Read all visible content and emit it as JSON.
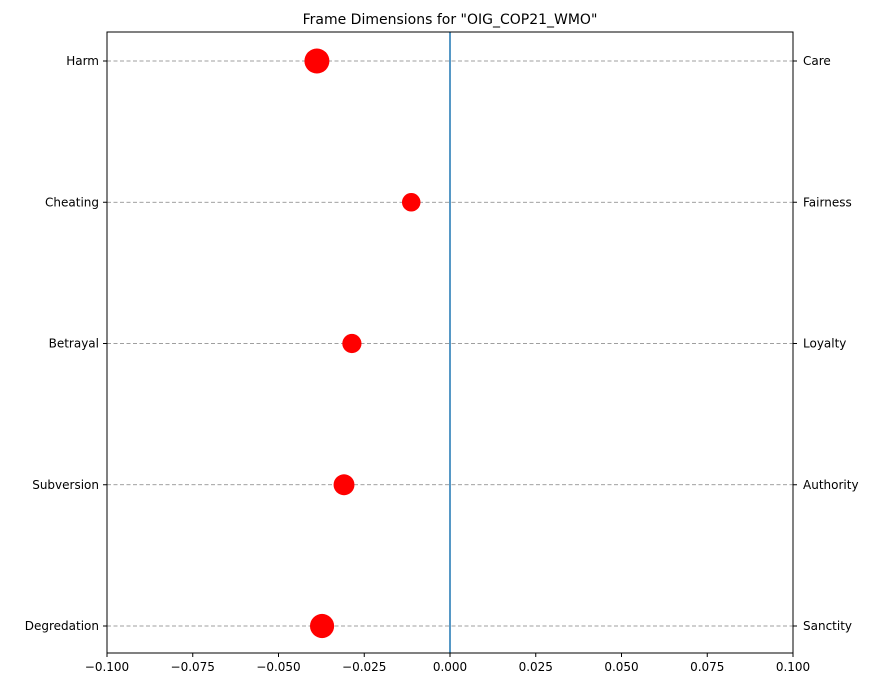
{
  "chart_data": {
    "type": "scatter",
    "title": "Frame Dimensions for \"OIG_COP21_WMO\"",
    "xlim": [
      -0.1,
      0.1
    ],
    "x_ticks": [
      -0.1,
      -0.075,
      -0.05,
      -0.025,
      0.0,
      0.025,
      0.05,
      0.075,
      0.1
    ],
    "x_tick_labels": [
      "−0.100",
      "−0.075",
      "−0.050",
      "−0.025",
      "0.000",
      "0.025",
      "0.050",
      "0.075",
      "0.100"
    ],
    "left_labels": [
      "Harm",
      "Cheating",
      "Betrayal",
      "Subversion",
      "Degredation"
    ],
    "right_labels": [
      "Care",
      "Fairness",
      "Loyalty",
      "Authority",
      "Sanctity"
    ],
    "points": [
      {
        "dimension": "Care",
        "x": -0.0388,
        "size": 1.0
      },
      {
        "dimension": "Fairness",
        "x": -0.0113,
        "size": 0.62
      },
      {
        "dimension": "Loyalty",
        "x": -0.0286,
        "size": 0.66
      },
      {
        "dimension": "Authority",
        "x": -0.0309,
        "size": 0.76
      },
      {
        "dimension": "Sanctity",
        "x": -0.0373,
        "size": 0.95
      }
    ],
    "vertical_line_x": 0,
    "grid": "horizontal dashed",
    "point_color": "#ff0000",
    "line_color": "#1f77b4"
  }
}
